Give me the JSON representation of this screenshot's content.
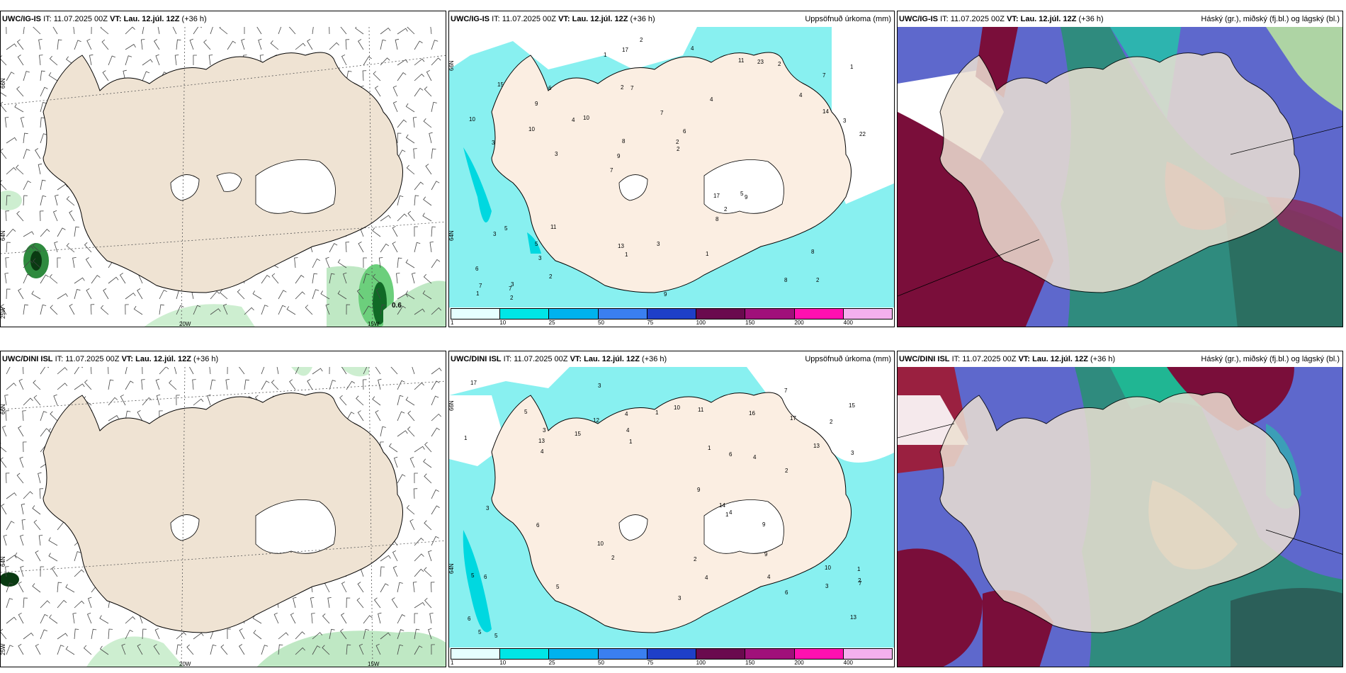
{
  "rows": [
    {
      "model": "UWC/IG-IS",
      "it_label": "IT:",
      "it": "11.07.2025 00Z",
      "vt_label": "VT:",
      "vt": "Lau. 12.júl. 12Z",
      "lead": "(+36 h)",
      "wind_labels": {
        "lat1": "66N",
        "lat2": "64N",
        "lat3": "25W",
        "lon1": "20W",
        "lon2": "15W",
        "val": "0.6"
      },
      "precip_numbers": [
        "2",
        "3",
        "7",
        "7",
        "4",
        "3",
        "2",
        "7",
        "5",
        "10",
        "6",
        "3",
        "7",
        "6",
        "9",
        "15",
        "17",
        "22",
        "17",
        "14",
        "9",
        "13",
        "8",
        "6",
        "11",
        "11",
        "8",
        "8",
        "5",
        "9",
        "4",
        "10",
        "8",
        "2",
        "3",
        "2",
        "7",
        "1",
        "2",
        "3",
        "4",
        "1",
        "2",
        "1",
        "5",
        "2",
        "1",
        "3",
        "2",
        "2",
        "3",
        "10",
        "9",
        "23",
        "7",
        "4",
        "1"
      ]
    },
    {
      "model": "UWC/DINI ISL",
      "it_label": "IT:",
      "it": "11.07.2025 00Z",
      "vt_label": "VT:",
      "vt": "Lau. 12.júl. 12Z",
      "lead": "(+36 h)",
      "wind_labels": {
        "lat1": "66N",
        "lat2": "64N",
        "lat3": "25W",
        "lon1": "20W",
        "lon2": "15W"
      },
      "precip_numbers": [
        "1",
        "5",
        "3",
        "4",
        "4",
        "6",
        "7",
        "9",
        "11",
        "10",
        "9",
        "6",
        "10",
        "17",
        "14",
        "15",
        "16",
        "17",
        "13",
        "13",
        "13",
        "12",
        "9",
        "5",
        "6",
        "4",
        "15",
        "10",
        "3",
        "4",
        "1",
        "1",
        "2",
        "3",
        "4",
        "5",
        "1",
        "2",
        "2",
        "3",
        "1",
        "2",
        "3",
        "4",
        "5",
        "6",
        "7",
        "2",
        "5",
        "1",
        "6",
        "3",
        "4"
      ]
    }
  ],
  "precip_title": "Uppsöfnuð úrkoma (mm)",
  "cloud_title": "Háský (gr.), miðský (fj.bl.) og lágský (bl.)",
  "colorbar": {
    "ticks": [
      "1",
      "10",
      "25",
      "50",
      "75",
      "100",
      "150",
      "200",
      "400"
    ],
    "colors": [
      "#e6ffff",
      "#00e6e6",
      "#00b2ee",
      "#3a7ff0",
      "#1e3fc8",
      "#6a0a4e",
      "#a0107a",
      "#ff10b0",
      "#f4b0ee"
    ]
  },
  "colors": {
    "land": "#efe3d3",
    "sea_precip": "#88f0f0",
    "wind_green": "#5cc46e",
    "cloud_high": "#6070d0",
    "cloud_mid": "#8a1240",
    "cloud_low": "#2a9a7a"
  }
}
